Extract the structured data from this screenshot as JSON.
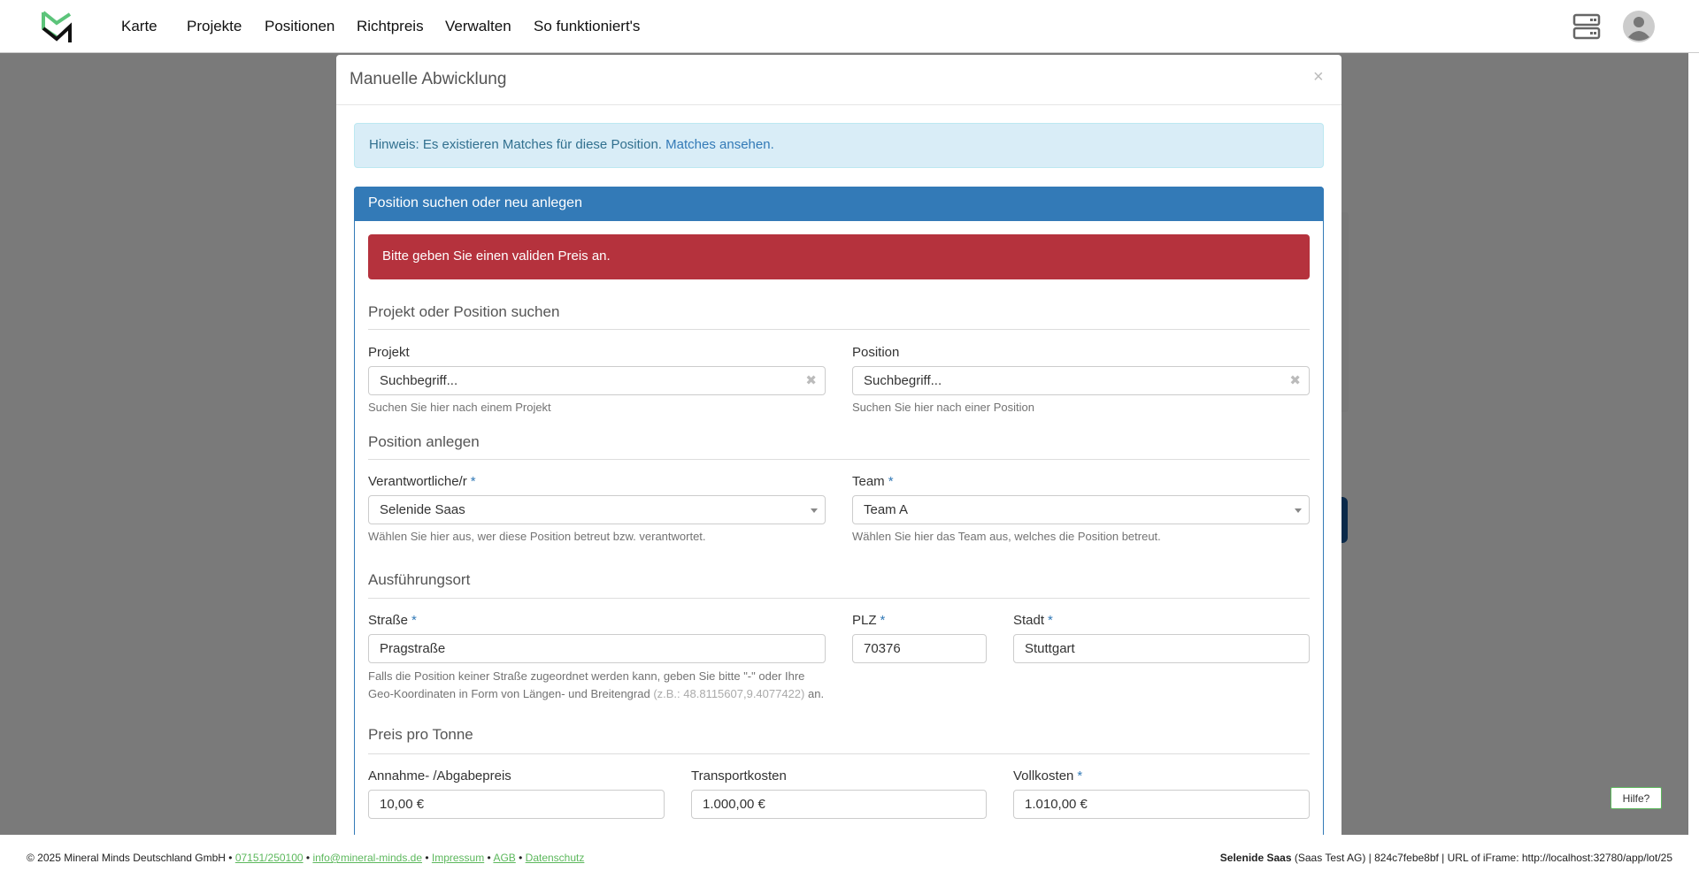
{
  "nav": {
    "items": [
      "Karte",
      "Projekte",
      "Positionen",
      "Richtpreis",
      "Verwalten",
      "So funktioniert's"
    ]
  },
  "modal": {
    "title": "Manuelle Abwicklung",
    "close": "×",
    "info": {
      "text": "Hinweis: Es existieren Matches für diese Position. ",
      "link": "Matches ansehen."
    },
    "panel_title": "Position suchen oder neu anlegen",
    "error": "Bitte geben Sie einen validen Preis an.",
    "search": {
      "heading": "Projekt oder Position suchen",
      "projekt": {
        "label": "Projekt",
        "placeholder": "Suchbegriff...",
        "help": "Suchen Sie hier nach einem Projekt"
      },
      "position": {
        "label": "Position",
        "placeholder": "Suchbegriff...",
        "help": "Suchen Sie hier nach einer Position"
      }
    },
    "create": {
      "heading": "Position anlegen",
      "verantwortlich": {
        "label": "Verantwortliche/r",
        "value": "Selenide Saas",
        "help": "Wählen Sie hier aus, wer diese Position betreut bzw. verantwortet."
      },
      "team": {
        "label": "Team",
        "value": "Team A",
        "help": "Wählen Sie hier das Team aus, welches die Position betreut."
      }
    },
    "ort": {
      "heading": "Ausführungsort",
      "strasse": {
        "label": "Straße",
        "value": "Pragstraße",
        "help": "Falls die Position keiner Straße zugeordnet werden kann, geben Sie bitte \"-\" oder Ihre Geo-Koordinaten in Form von Längen- und Breitengrad ",
        "hint": "(z.B.: 48.8115607,9.4077422)",
        "help_end": " an."
      },
      "plz": {
        "label": "PLZ",
        "value": "70376"
      },
      "stadt": {
        "label": "Stadt",
        "value": "Stuttgart"
      }
    },
    "preis": {
      "heading": "Preis pro Tonne",
      "annahme": {
        "label": "Annahme- /Abgabepreis",
        "value": "10,00 €"
      },
      "transport": {
        "label": "Transportkosten",
        "value": "1.000,00 €"
      },
      "voll": {
        "label": "Vollkosten",
        "value": "1.010,00 €"
      }
    },
    "required_mark": "*"
  },
  "footer": {
    "copyright": "© 2025 Mineral Minds Deutschland GmbH • ",
    "phone": "07151/250100",
    "email": "info@mineral-minds.de",
    "impressum": "Impressum",
    "agb": "AGB",
    "datenschutz": "Datenschutz",
    "sep": " • ",
    "user": "Selenide Saas",
    "company": " (Saas Test AG) | 824c7febe8bf | URL of iFrame: http://localhost:32780/app/lot/25"
  },
  "help_bubble": "Hilfe?",
  "colors": {
    "primary": "#337ab7",
    "danger": "#b5323d",
    "brand_green": "#5cb85c"
  }
}
